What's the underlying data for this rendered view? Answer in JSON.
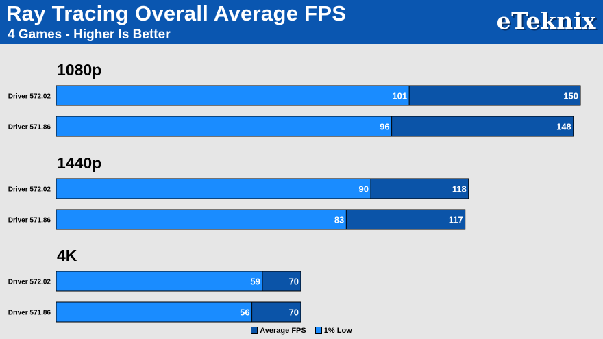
{
  "header": {
    "title": "Ray Tracing Overall Average FPS",
    "subtitle": "4 Games - Higher Is Better",
    "logo_text": "eTeknix"
  },
  "colors": {
    "header_bg": "#0a56b0",
    "average_fps": "#0b54a8",
    "one_percent_low": "#1a8cff",
    "background": "#e6e6e6"
  },
  "legend": {
    "average_fps": "Average FPS",
    "one_percent_low": "1% Low"
  },
  "chart_data": {
    "type": "bar",
    "orientation": "horizontal",
    "stacking": "overlaid",
    "title": "Ray Tracing Overall Average FPS",
    "subtitle": "4 Games - Higher Is Better",
    "xlim": [
      0,
      150
    ],
    "grid": false,
    "legend_position": "bottom-center",
    "groups": [
      {
        "label": "1080p",
        "rows": [
          {
            "label": "Driver 572.02",
            "average_fps": 150,
            "one_percent_low": 101
          },
          {
            "label": "Driver 571.86",
            "average_fps": 148,
            "one_percent_low": 96
          }
        ]
      },
      {
        "label": "1440p",
        "rows": [
          {
            "label": "Driver 572.02",
            "average_fps": 118,
            "one_percent_low": 90
          },
          {
            "label": "Driver 571.86",
            "average_fps": 117,
            "one_percent_low": 83
          }
        ]
      },
      {
        "label": "4K",
        "rows": [
          {
            "label": "Driver 572.02",
            "average_fps": 70,
            "one_percent_low": 59
          },
          {
            "label": "Driver 571.86",
            "average_fps": 70,
            "one_percent_low": 56
          }
        ]
      }
    ],
    "series": [
      {
        "name": "Average FPS",
        "key": "average_fps"
      },
      {
        "name": "1% Low",
        "key": "one_percent_low"
      }
    ]
  }
}
